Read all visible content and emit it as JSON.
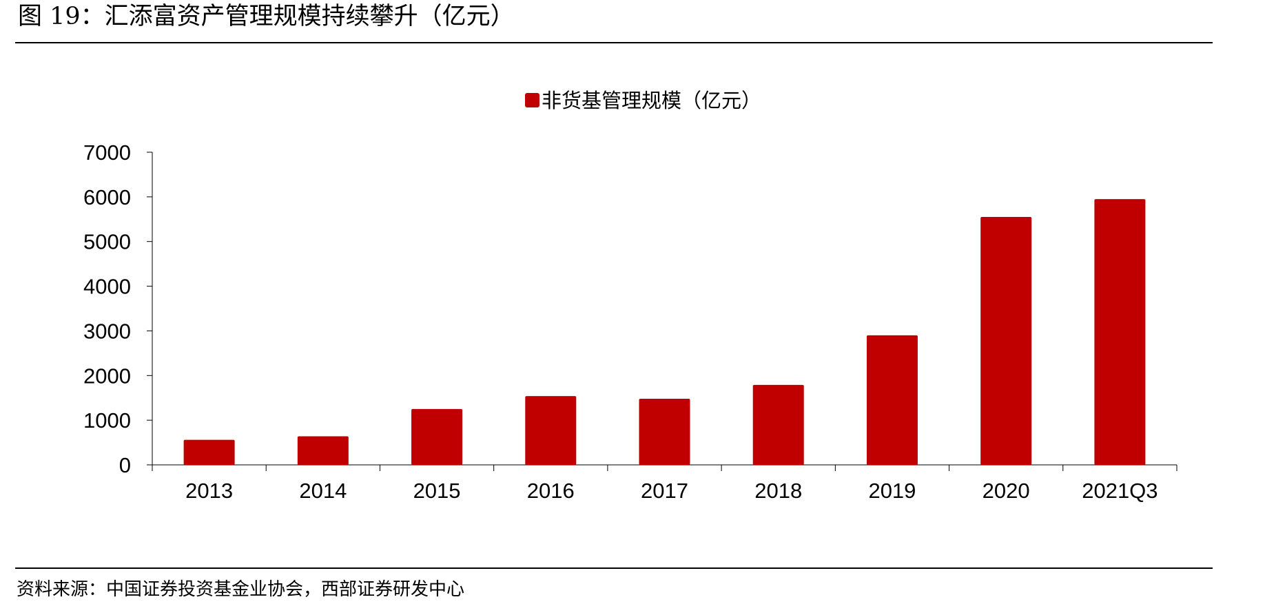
{
  "figure": {
    "title": "图 19：汇添富资产管理规模持续攀升（亿元）",
    "source": "资料来源：中国证券投资基金业协会，西部证券研发中心"
  },
  "chart_data": {
    "type": "bar",
    "title": "",
    "xlabel": "",
    "ylabel": "",
    "categories": [
      "2013",
      "2014",
      "2015",
      "2016",
      "2017",
      "2018",
      "2019",
      "2020",
      "2021Q3"
    ],
    "series": [
      {
        "name": "非货基管理规模（亿元）",
        "color": "#C00000",
        "values": [
          560,
          640,
          1250,
          1540,
          1480,
          1790,
          2900,
          5550,
          5950
        ]
      }
    ],
    "ylim": [
      0,
      7000
    ],
    "yticks": [
      0,
      1000,
      2000,
      3000,
      4000,
      5000,
      6000,
      7000
    ],
    "grid": false,
    "legend_position": "top-center"
  }
}
